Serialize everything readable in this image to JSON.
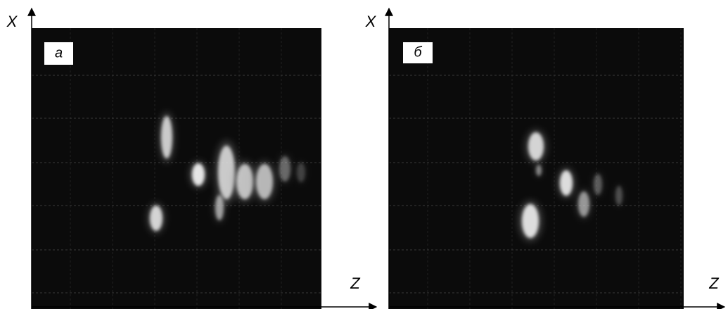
{
  "panels": [
    {
      "label": "а",
      "x_axis": "Z",
      "y_axis": "X"
    },
    {
      "label": "б",
      "x_axis": "Z",
      "y_axis": "X"
    }
  ]
}
